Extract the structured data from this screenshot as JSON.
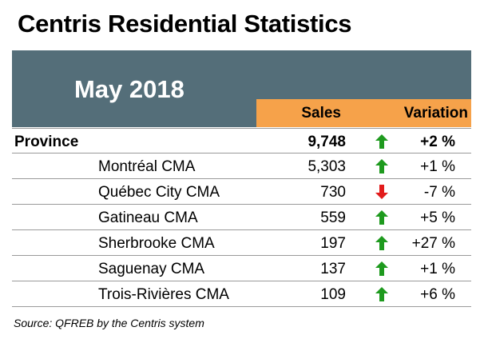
{
  "title": "Centris Residential Statistics",
  "period": "May 2018",
  "columns": {
    "sales": "Sales",
    "variation": "Variation"
  },
  "rows": [
    {
      "name": "Province",
      "sales": "9,748",
      "variation": "+2 %",
      "trend": "up"
    },
    {
      "name": "Montréal CMA",
      "sales": "5,303",
      "variation": "+1 %",
      "trend": "up"
    },
    {
      "name": "Québec City CMA",
      "sales": "730",
      "variation": "-7 %",
      "trend": "down"
    },
    {
      "name": "Gatineau CMA",
      "sales": "559",
      "variation": "+5 %",
      "trend": "up"
    },
    {
      "name": "Sherbrooke CMA",
      "sales": "197",
      "variation": "+27 %",
      "trend": "up"
    },
    {
      "name": "Saguenay CMA",
      "sales": "137",
      "variation": "+1 %",
      "trend": "up"
    },
    {
      "name": "Trois-Rivières CMA",
      "sales": "109",
      "variation": "+6 %",
      "trend": "up"
    }
  ],
  "source": "Source: QFREB by the Centris  system",
  "icons": {
    "up": "arrow-up-icon",
    "down": "arrow-down-icon"
  },
  "colors": {
    "header_band": "#546e79",
    "column_header": "#f6a24a",
    "up_arrow": "#1e9a1e",
    "down_arrow": "#e21b1b"
  }
}
